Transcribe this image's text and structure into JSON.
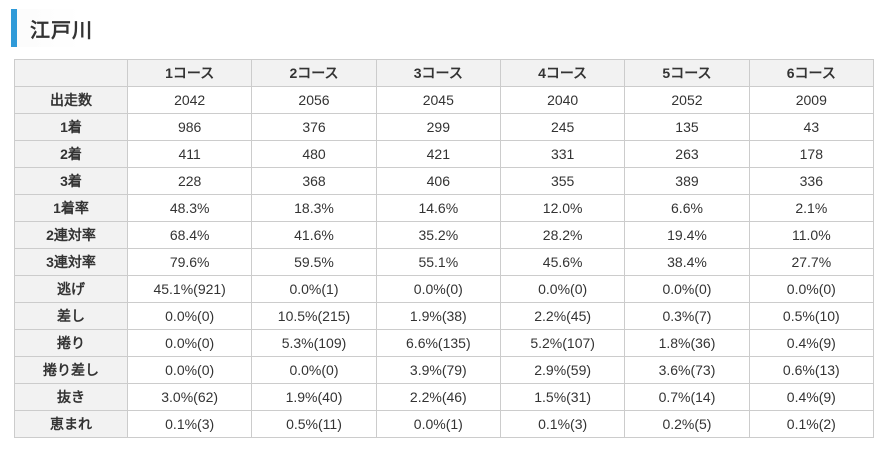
{
  "page": {
    "title": "江戸川"
  },
  "colors": {
    "accent_blue": "#2f9ad8",
    "header_bg": "#f2f2f2",
    "border": "#cccccc",
    "text": "#333333"
  },
  "table": {
    "columns": [
      "1コース",
      "2コース",
      "3コース",
      "4コース",
      "5コース",
      "6コース"
    ],
    "rows": [
      {
        "label": "出走数",
        "values": [
          "2042",
          "2056",
          "2045",
          "2040",
          "2052",
          "2009"
        ]
      },
      {
        "label": "1着",
        "values": [
          "986",
          "376",
          "299",
          "245",
          "135",
          "43"
        ]
      },
      {
        "label": "2着",
        "values": [
          "411",
          "480",
          "421",
          "331",
          "263",
          "178"
        ]
      },
      {
        "label": "3着",
        "values": [
          "228",
          "368",
          "406",
          "355",
          "389",
          "336"
        ]
      },
      {
        "label": "1着率",
        "values": [
          "48.3%",
          "18.3%",
          "14.6%",
          "12.0%",
          "6.6%",
          "2.1%"
        ]
      },
      {
        "label": "2連対率",
        "values": [
          "68.4%",
          "41.6%",
          "35.2%",
          "28.2%",
          "19.4%",
          "11.0%"
        ]
      },
      {
        "label": "3連対率",
        "values": [
          "79.6%",
          "59.5%",
          "55.1%",
          "45.6%",
          "38.4%",
          "27.7%"
        ]
      },
      {
        "label": "逃げ",
        "values": [
          "45.1%(921)",
          "0.0%(1)",
          "0.0%(0)",
          "0.0%(0)",
          "0.0%(0)",
          "0.0%(0)"
        ]
      },
      {
        "label": "差し",
        "values": [
          "0.0%(0)",
          "10.5%(215)",
          "1.9%(38)",
          "2.2%(45)",
          "0.3%(7)",
          "0.5%(10)"
        ]
      },
      {
        "label": "捲り",
        "values": [
          "0.0%(0)",
          "5.3%(109)",
          "6.6%(135)",
          "5.2%(107)",
          "1.8%(36)",
          "0.4%(9)"
        ]
      },
      {
        "label": "捲り差し",
        "values": [
          "0.0%(0)",
          "0.0%(0)",
          "3.9%(79)",
          "2.9%(59)",
          "3.6%(73)",
          "0.6%(13)"
        ]
      },
      {
        "label": "抜き",
        "values": [
          "3.0%(62)",
          "1.9%(40)",
          "2.2%(46)",
          "1.5%(31)",
          "0.7%(14)",
          "0.4%(9)"
        ]
      },
      {
        "label": "恵まれ",
        "values": [
          "0.1%(3)",
          "0.5%(11)",
          "0.0%(1)",
          "0.1%(3)",
          "0.2%(5)",
          "0.1%(2)"
        ]
      }
    ]
  }
}
